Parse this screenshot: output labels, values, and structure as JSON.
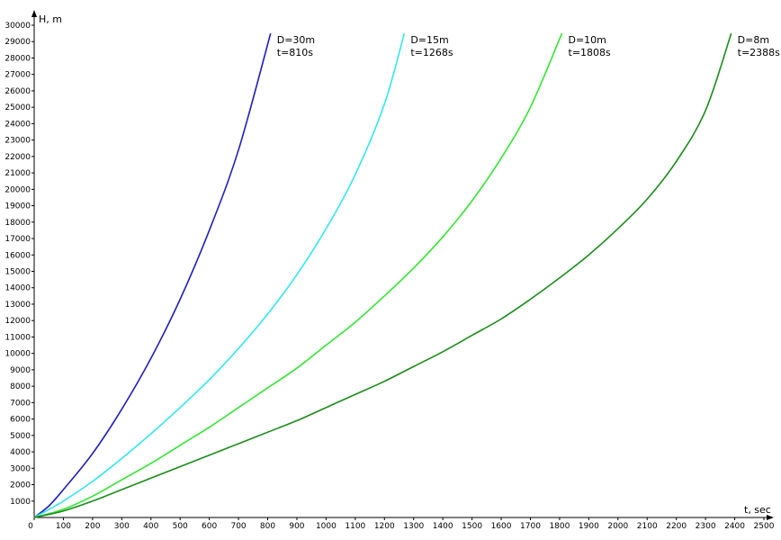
{
  "chart_data": {
    "type": "line",
    "title": "",
    "xlabel": "t, sec",
    "ylabel": "H, m",
    "xlim": [
      0,
      2500
    ],
    "ylim": [
      0,
      30000
    ],
    "x_ticks": [
      0,
      100,
      200,
      300,
      400,
      500,
      600,
      700,
      800,
      900,
      1000,
      1100,
      1200,
      1300,
      1400,
      1500,
      1600,
      1700,
      1800,
      1900,
      2000,
      2100,
      2200,
      2300,
      2400,
      2500
    ],
    "y_ticks": [
      1000,
      2000,
      3000,
      4000,
      5000,
      6000,
      7000,
      8000,
      9000,
      10000,
      11000,
      12000,
      13000,
      14000,
      15000,
      16000,
      17000,
      18000,
      19000,
      20000,
      21000,
      22000,
      23000,
      24000,
      25000,
      26000,
      27000,
      28000,
      29000,
      30000
    ],
    "grid": false,
    "series": [
      {
        "name": "D=30m",
        "label_lines": [
          "D=30m",
          "t=810s"
        ],
        "color": "#1f1fbf",
        "x": [
          0,
          50,
          100,
          200,
          300,
          400,
          500,
          600,
          700,
          810
        ],
        "y": [
          0,
          700,
          1700,
          3900,
          6600,
          9700,
          13300,
          17500,
          22400,
          29500
        ]
      },
      {
        "name": "D=15m",
        "label_lines": [
          "D=15m",
          "t=1268s"
        ],
        "color": "#33e6f0",
        "x": [
          0,
          100,
          200,
          300,
          400,
          500,
          600,
          700,
          800,
          900,
          1000,
          1100,
          1200,
          1268
        ],
        "y": [
          0,
          1000,
          2200,
          3600,
          5100,
          6700,
          8400,
          10300,
          12400,
          14800,
          17600,
          20900,
          25200,
          29500
        ]
      },
      {
        "name": "D=10m",
        "label_lines": [
          "D=10m",
          "t=1808s"
        ],
        "color": "#33e633",
        "x": [
          0,
          100,
          200,
          300,
          400,
          500,
          600,
          700,
          800,
          900,
          1000,
          1100,
          1200,
          1300,
          1400,
          1500,
          1600,
          1700,
          1808
        ],
        "y": [
          0,
          500,
          1300,
          2300,
          3300,
          4400,
          5500,
          6700,
          7900,
          9100,
          10500,
          11900,
          13500,
          15200,
          17100,
          19300,
          21900,
          25000,
          29500
        ]
      },
      {
        "name": "D=8m",
        "label_lines": [
          "D=8m",
          "t=2388s"
        ],
        "color": "#1a8c1a",
        "x": [
          0,
          100,
          200,
          300,
          400,
          500,
          600,
          700,
          800,
          900,
          1000,
          1100,
          1200,
          1300,
          1400,
          1500,
          1600,
          1700,
          1800,
          1900,
          2000,
          2100,
          2200,
          2300,
          2388
        ],
        "y": [
          0,
          400,
          1000,
          1700,
          2400,
          3100,
          3800,
          4500,
          5200,
          5900,
          6700,
          7500,
          8300,
          9200,
          10100,
          11100,
          12100,
          13300,
          14600,
          16000,
          17600,
          19400,
          21700,
          24800,
          29500
        ]
      }
    ]
  }
}
